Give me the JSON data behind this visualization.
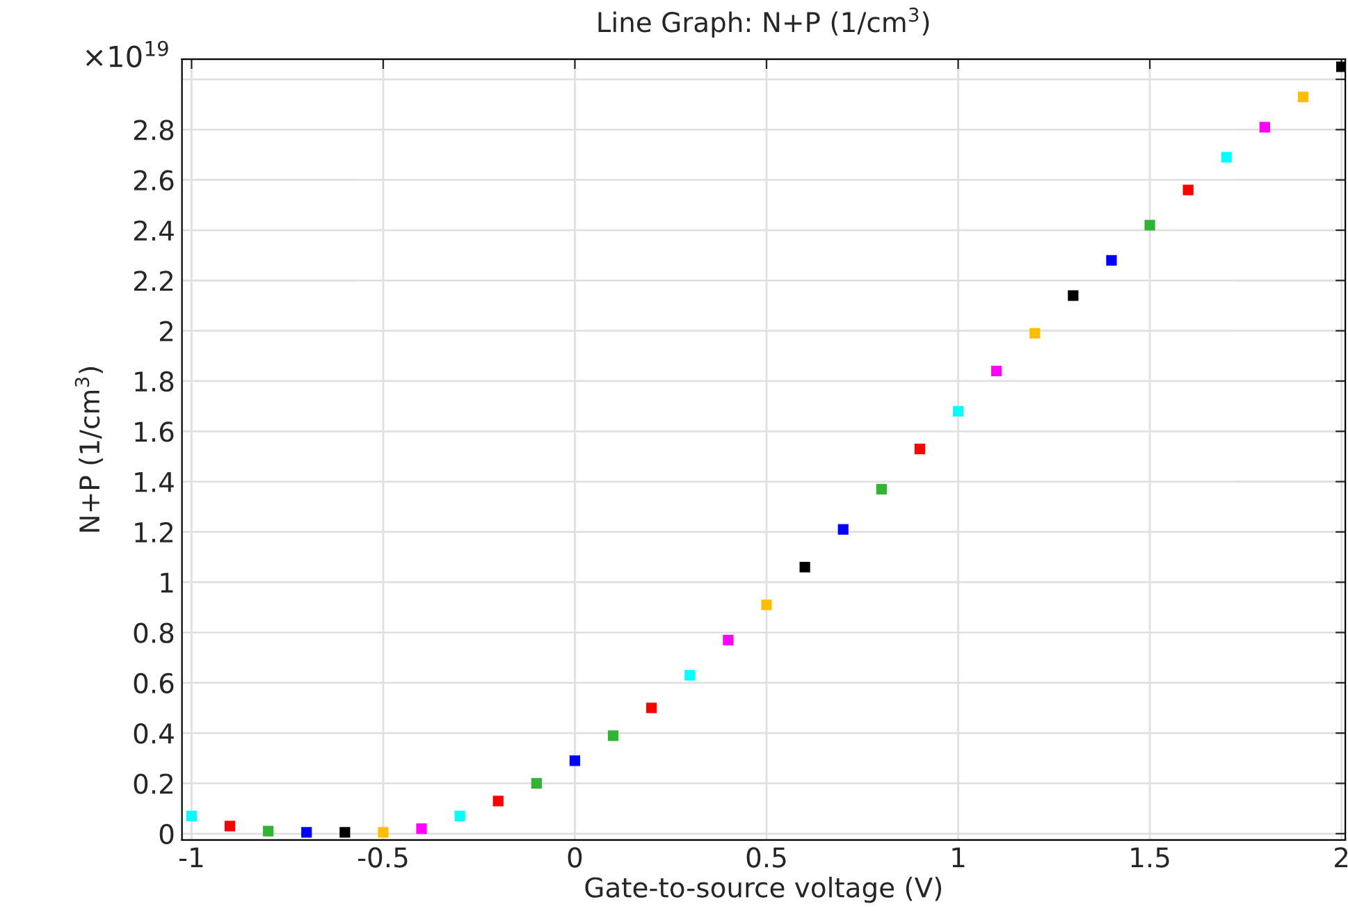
{
  "chart_data": {
    "type": "scatter",
    "title": "Line Graph: N+P (1/cm$^{3}$)",
    "xlabel": "Gate-to-source voltage (V)",
    "ylabel": "N+P (1/cm$^{3}$)",
    "annotations": [
      "×10$^{19}$"
    ],
    "x": [
      -1,
      -0.9,
      -0.8,
      -0.7,
      -0.6,
      -0.5,
      -0.4,
      -0.3,
      -0.2,
      -0.1,
      0,
      0.1,
      0.2,
      0.3,
      0.4,
      0.5,
      0.6,
      0.7,
      0.8,
      0.9,
      1,
      1.1,
      1.2,
      1.3,
      1.4,
      1.5,
      1.6,
      1.7,
      1.8,
      1.9,
      2
    ],
    "values": [
      0.07,
      0.03,
      0.01,
      0.005,
      0.005,
      0.005,
      0.02,
      0.07,
      0.13,
      0.2,
      0.29,
      0.39,
      0.5,
      0.63,
      0.77,
      0.91,
      1.06,
      1.21,
      1.37,
      1.53,
      1.68,
      1.84,
      1.99,
      2.14,
      2.28,
      2.42,
      2.56,
      2.69,
      2.81,
      2.93,
      3.05
    ],
    "colors": [
      "#00ffff",
      "#ff0000",
      "#33b333",
      "#0000ff",
      "#000000",
      "#ffbf00",
      "#ff00ff",
      "#00ffff",
      "#ff0000",
      "#33b333",
      "#0000ff",
      "#33b333",
      "#ff0000",
      "#00ffff",
      "#ff00ff",
      "#ffbf00",
      "#000000",
      "#0000ff",
      "#33b333",
      "#ff0000",
      "#00ffff",
      "#ff00ff",
      "#ffbf00",
      "#000000",
      "#0000ff",
      "#33b333",
      "#ff0000",
      "#00ffff",
      "#ff00ff",
      "#ffbf00",
      "#000000"
    ],
    "marker": "square",
    "grid": true,
    "legend": false,
    "xlim": [
      -1.025,
      2.01
    ],
    "xticks": [
      -1,
      -0.5,
      0,
      0.5,
      1,
      1.5,
      2
    ],
    "ylim": [
      -0.025,
      3.08
    ],
    "yticks": [
      0,
      0.2,
      0.4,
      0.6,
      0.8,
      1,
      1.2,
      1.4,
      1.6,
      1.8,
      2,
      2.2,
      2.4,
      2.6,
      2.8,
      {
        "value": 3,
        "label": null
      }
    ]
  }
}
